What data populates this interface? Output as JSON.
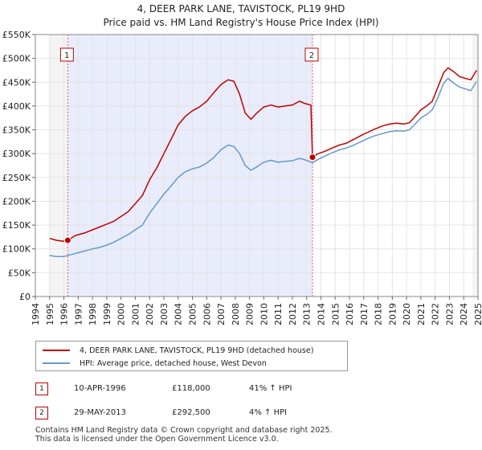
{
  "chart_data": {
    "type": "line",
    "title": "4, DEER PARK LANE, TAVISTOCK, PL19 9HD",
    "subtitle": "Price paid vs. HM Land Registry's House Price Index (HPI)",
    "xlabel": "",
    "ylabel": "",
    "xlim": [
      1994,
      2025
    ],
    "ylim": [
      0,
      550000
    ],
    "x_ticks": [
      "1994",
      "1995",
      "1996",
      "1997",
      "1998",
      "1999",
      "2000",
      "2001",
      "2002",
      "2003",
      "2004",
      "2005",
      "2006",
      "2007",
      "2008",
      "2009",
      "2010",
      "2011",
      "2012",
      "2013",
      "2014",
      "2015",
      "2016",
      "2017",
      "2018",
      "2019",
      "2020",
      "2021",
      "2022",
      "2023",
      "2024",
      "2025"
    ],
    "y_ticks": [
      {
        "value": 0,
        "label": "£0"
      },
      {
        "value": 50000,
        "label": "£50K"
      },
      {
        "value": 100000,
        "label": "£100K"
      },
      {
        "value": 150000,
        "label": "£150K"
      },
      {
        "value": 200000,
        "label": "£200K"
      },
      {
        "value": 250000,
        "label": "£250K"
      },
      {
        "value": 300000,
        "label": "£300K"
      },
      {
        "value": 350000,
        "label": "£350K"
      },
      {
        "value": 400000,
        "label": "£400K"
      },
      {
        "value": 450000,
        "label": "£450K"
      },
      {
        "value": 500000,
        "label": "£500K"
      },
      {
        "value": 550000,
        "label": "£550K"
      }
    ],
    "shaded_ranges": [
      [
        1995.0,
        1996.27
      ],
      [
        1996.27,
        2013.41
      ],
      [
        2024.6,
        2025.0
      ]
    ],
    "series": [
      {
        "name": "4, DEER PARK LANE, TAVISTOCK, PL19 9HD (detached house)",
        "color": "#c00000",
        "points": [
          [
            1995.0,
            122000
          ],
          [
            1995.5,
            118000
          ],
          [
            1996.0,
            116000
          ],
          [
            1996.27,
            118000
          ],
          [
            1996.8,
            128000
          ],
          [
            1997.5,
            134000
          ],
          [
            1998.0,
            140000
          ],
          [
            1998.5,
            146000
          ],
          [
            1999.0,
            152000
          ],
          [
            1999.5,
            158000
          ],
          [
            2000.0,
            168000
          ],
          [
            2000.5,
            178000
          ],
          [
            2001.0,
            195000
          ],
          [
            2001.5,
            212000
          ],
          [
            2002.0,
            245000
          ],
          [
            2002.5,
            270000
          ],
          [
            2003.0,
            300000
          ],
          [
            2003.5,
            330000
          ],
          [
            2004.0,
            360000
          ],
          [
            2004.5,
            378000
          ],
          [
            2005.0,
            390000
          ],
          [
            2005.5,
            398000
          ],
          [
            2006.0,
            410000
          ],
          [
            2006.5,
            428000
          ],
          [
            2007.0,
            445000
          ],
          [
            2007.5,
            455000
          ],
          [
            2007.9,
            452000
          ],
          [
            2008.3,
            425000
          ],
          [
            2008.7,
            385000
          ],
          [
            2009.1,
            372000
          ],
          [
            2009.5,
            385000
          ],
          [
            2010.0,
            398000
          ],
          [
            2010.5,
            402000
          ],
          [
            2011.0,
            398000
          ],
          [
            2011.5,
            400000
          ],
          [
            2012.0,
            402000
          ],
          [
            2012.5,
            410000
          ],
          [
            2012.9,
            405000
          ],
          [
            2013.3,
            402000
          ],
          [
            2013.41,
            292500
          ],
          [
            2013.8,
            300000
          ],
          [
            2014.3,
            305000
          ],
          [
            2014.8,
            312000
          ],
          [
            2015.3,
            318000
          ],
          [
            2015.8,
            322000
          ],
          [
            2016.3,
            330000
          ],
          [
            2016.8,
            338000
          ],
          [
            2017.3,
            345000
          ],
          [
            2017.8,
            352000
          ],
          [
            2018.3,
            358000
          ],
          [
            2018.8,
            362000
          ],
          [
            2019.3,
            364000
          ],
          [
            2019.8,
            362000
          ],
          [
            2020.2,
            365000
          ],
          [
            2020.6,
            378000
          ],
          [
            2021.0,
            392000
          ],
          [
            2021.4,
            400000
          ],
          [
            2021.8,
            410000
          ],
          [
            2022.2,
            440000
          ],
          [
            2022.6,
            470000
          ],
          [
            2022.9,
            480000
          ],
          [
            2023.3,
            472000
          ],
          [
            2023.7,
            462000
          ],
          [
            2024.1,
            458000
          ],
          [
            2024.5,
            455000
          ],
          [
            2024.9,
            475000
          ]
        ]
      },
      {
        "name": "HPI: Average price, detached house, West Devon",
        "color": "#6699cc",
        "points": [
          [
            1995.0,
            86000
          ],
          [
            1995.5,
            84000
          ],
          [
            1996.0,
            84000
          ],
          [
            1996.5,
            88000
          ],
          [
            1997.0,
            92000
          ],
          [
            1997.5,
            96000
          ],
          [
            1998.0,
            100000
          ],
          [
            1998.5,
            103000
          ],
          [
            1999.0,
            108000
          ],
          [
            1999.5,
            114000
          ],
          [
            2000.0,
            122000
          ],
          [
            2000.5,
            130000
          ],
          [
            2001.0,
            140000
          ],
          [
            2001.5,
            150000
          ],
          [
            2002.0,
            175000
          ],
          [
            2002.5,
            195000
          ],
          [
            2003.0,
            215000
          ],
          [
            2003.5,
            232000
          ],
          [
            2004.0,
            250000
          ],
          [
            2004.5,
            262000
          ],
          [
            2005.0,
            268000
          ],
          [
            2005.5,
            272000
          ],
          [
            2006.0,
            280000
          ],
          [
            2006.5,
            292000
          ],
          [
            2007.0,
            308000
          ],
          [
            2007.5,
            318000
          ],
          [
            2007.9,
            315000
          ],
          [
            2008.3,
            300000
          ],
          [
            2008.7,
            275000
          ],
          [
            2009.1,
            265000
          ],
          [
            2009.5,
            272000
          ],
          [
            2010.0,
            282000
          ],
          [
            2010.5,
            286000
          ],
          [
            2011.0,
            282000
          ],
          [
            2011.5,
            284000
          ],
          [
            2012.0,
            285000
          ],
          [
            2012.5,
            290000
          ],
          [
            2012.9,
            287000
          ],
          [
            2013.41,
            281000
          ],
          [
            2013.8,
            288000
          ],
          [
            2014.3,
            295000
          ],
          [
            2014.8,
            302000
          ],
          [
            2015.3,
            308000
          ],
          [
            2015.8,
            312000
          ],
          [
            2016.3,
            318000
          ],
          [
            2016.8,
            325000
          ],
          [
            2017.3,
            332000
          ],
          [
            2017.8,
            338000
          ],
          [
            2018.3,
            342000
          ],
          [
            2018.8,
            346000
          ],
          [
            2019.3,
            348000
          ],
          [
            2019.8,
            347000
          ],
          [
            2020.2,
            350000
          ],
          [
            2020.6,
            362000
          ],
          [
            2021.0,
            375000
          ],
          [
            2021.4,
            382000
          ],
          [
            2021.8,
            392000
          ],
          [
            2022.2,
            418000
          ],
          [
            2022.6,
            448000
          ],
          [
            2022.9,
            458000
          ],
          [
            2023.3,
            448000
          ],
          [
            2023.7,
            440000
          ],
          [
            2024.1,
            436000
          ],
          [
            2024.5,
            432000
          ],
          [
            2024.9,
            452000
          ]
        ]
      }
    ],
    "markers": [
      {
        "id": "1",
        "label": "1",
        "x": 1996.27,
        "y": 118000
      },
      {
        "id": "2",
        "label": "2",
        "x": 2013.41,
        "y": 292500
      }
    ]
  },
  "legend": {
    "property_label": "4, DEER PARK LANE, TAVISTOCK, PL19 9HD (detached house)",
    "hpi_label": "HPI: Average price, detached house, West Devon",
    "property_color": "#c00000",
    "hpi_color": "#6699cc"
  },
  "transactions": [
    {
      "num": "1",
      "date": "10-APR-1996",
      "price": "£118,000",
      "hpi": "41% ↑ HPI"
    },
    {
      "num": "2",
      "date": "29-MAY-2013",
      "price": "£292,500",
      "hpi": "4% ↑ HPI"
    }
  ],
  "footer": {
    "line1": "Contains HM Land Registry data © Crown copyright and database right 2025.",
    "line2": "This data is licensed under the Open Government Licence v3.0."
  }
}
